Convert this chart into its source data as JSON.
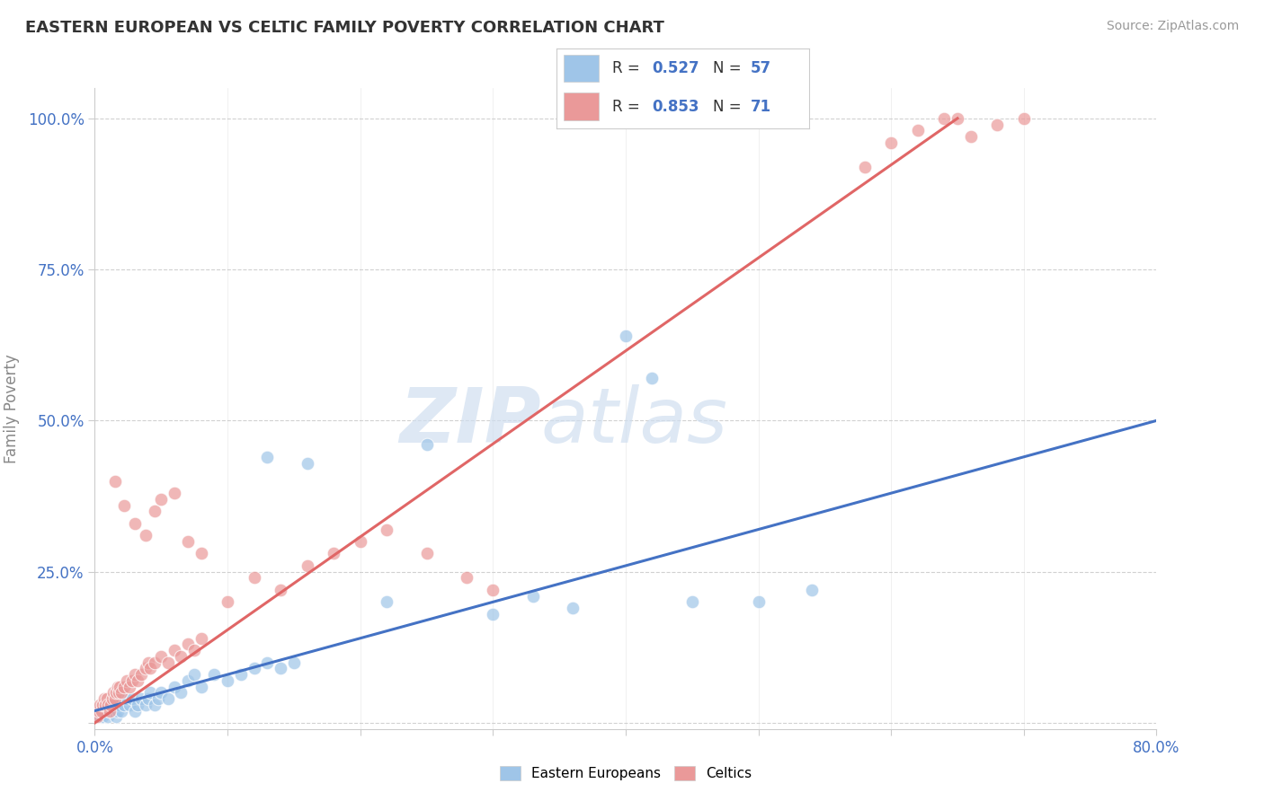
{
  "title": "EASTERN EUROPEAN VS CELTIC FAMILY POVERTY CORRELATION CHART",
  "source": "Source: ZipAtlas.com",
  "ylabel": "Family Poverty",
  "xlim": [
    0.0,
    0.8
  ],
  "ylim": [
    -0.01,
    1.05
  ],
  "blue_color": "#9fc5e8",
  "pink_color": "#ea9999",
  "blue_line_color": "#4472c4",
  "pink_line_color": "#e06666",
  "watermark_zip": "ZIP",
  "watermark_atlas": "atlas",
  "legend_label_blue": "Eastern Europeans",
  "legend_label_pink": "Celtics",
  "ytick_vals": [
    0.0,
    0.25,
    0.5,
    0.75,
    1.0
  ],
  "ytick_labels": [
    "",
    "25.0%",
    "50.0%",
    "75.0%",
    "100.0%"
  ],
  "xtick_vals": [
    0.0,
    0.1,
    0.2,
    0.3,
    0.4,
    0.5,
    0.6,
    0.7,
    0.8
  ],
  "xtick_labels": [
    "0.0%",
    "",
    "",
    "",
    "",
    "",
    "",
    "",
    "80.0%"
  ],
  "blue_line_x": [
    0.0,
    0.8
  ],
  "blue_line_y": [
    0.02,
    0.5
  ],
  "pink_line_x": [
    0.0,
    0.65
  ],
  "pink_line_y": [
    0.0,
    1.0
  ]
}
